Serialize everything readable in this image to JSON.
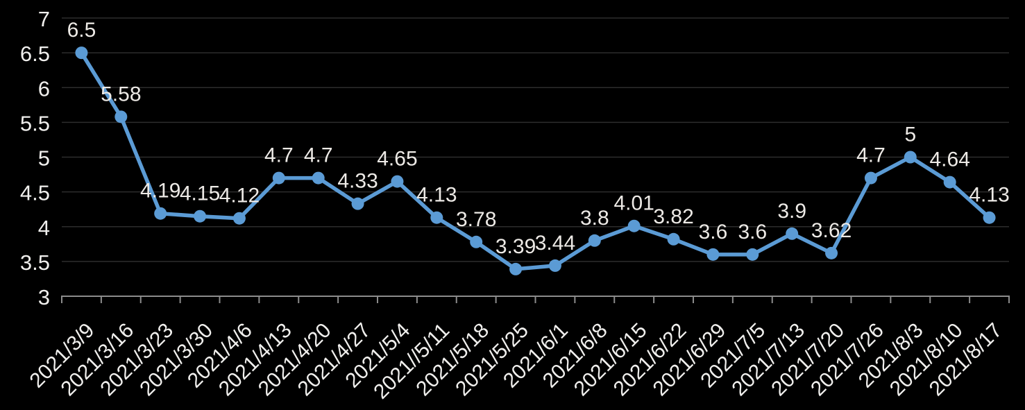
{
  "chart_data": {
    "type": "line",
    "title": "",
    "xlabel": "",
    "ylabel": "",
    "categories": [
      "2021/3/9",
      "2021/3/16",
      "2021/3/23",
      "2021/3/30",
      "2021/4/6",
      "2021/4/13",
      "2021/4/20",
      "2021/4/27",
      "2021/5/4",
      "2021//5/11",
      "2021/5/18",
      "2021/5/25",
      "2021/6/1",
      "2021/6/8",
      "2021/6/15",
      "2021/6/22",
      "2021/6/29",
      "2021/7/5",
      "2021/7/13",
      "2021/7/20",
      "2021/7/26",
      "2021/8/3",
      "2021/8/10",
      "2021/8/17"
    ],
    "values": [
      6.5,
      5.58,
      4.19,
      4.15,
      4.12,
      4.7,
      4.7,
      4.33,
      4.65,
      4.13,
      3.78,
      3.39,
      3.44,
      3.8,
      4.01,
      3.82,
      3.6,
      3.6,
      3.9,
      3.62,
      4.7,
      5,
      4.64,
      4.13
    ],
    "data_labels": [
      "6.5",
      "5.58",
      "4.19",
      "4.15",
      "4.12",
      "4.7",
      "4.7",
      "4.33",
      "4.65",
      "4.13",
      "3.78",
      "3.39",
      "3.44",
      "3.8",
      "4.01",
      "3.82",
      "3.6",
      "3.6",
      "3.9",
      "3.62",
      "4.7",
      "5",
      "4.64",
      "4.13"
    ],
    "ylim": [
      3,
      7
    ],
    "ytick_step": 0.5,
    "ytick_labels": [
      "3",
      "3.5",
      "4",
      "4.5",
      "5",
      "5.5",
      "6",
      "6.5",
      "7"
    ],
    "grid": true,
    "legend": "none",
    "marker": "circle",
    "x_label_rotation_deg": -45,
    "colors": {
      "background": "#000000",
      "series": "#5B9BD5",
      "gridline": "#2D2D2D",
      "axis_line": "#8C8C8C",
      "data_label_text": "#EDEAE6",
      "axis_label_text": "#F0EFED"
    }
  }
}
